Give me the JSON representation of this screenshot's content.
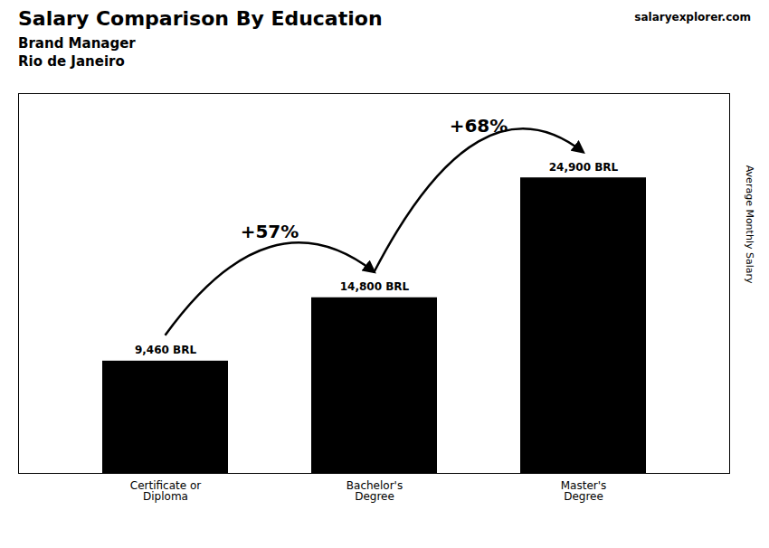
{
  "chart_data": {
    "type": "bar",
    "title": "Salary Comparison By Education",
    "subtitle": [
      "Brand Manager",
      "Rio de Janeiro"
    ],
    "ylabel": "Average Monthly Salary",
    "categories": [
      "Certificate or\nDiploma",
      "Bachelor's\nDegree",
      "Master's\nDegree"
    ],
    "values": [
      9460,
      14800,
      24900
    ],
    "value_labels": [
      "9,460 BRL",
      "14,800 BRL",
      "24,900 BRL"
    ],
    "data_labels": true,
    "ylim": [
      0,
      32000
    ],
    "tick_labels": "x",
    "grid": false,
    "annotations": [
      {
        "text": "+57%",
        "from": "Certificate or\nDiploma",
        "to": "Bachelor's\nDegree"
      },
      {
        "text": "+68%",
        "from": "Bachelor's\nDegree",
        "to": "Master's\nDegree"
      },
      {
        "text": "salaryexplorer.com"
      }
    ]
  }
}
